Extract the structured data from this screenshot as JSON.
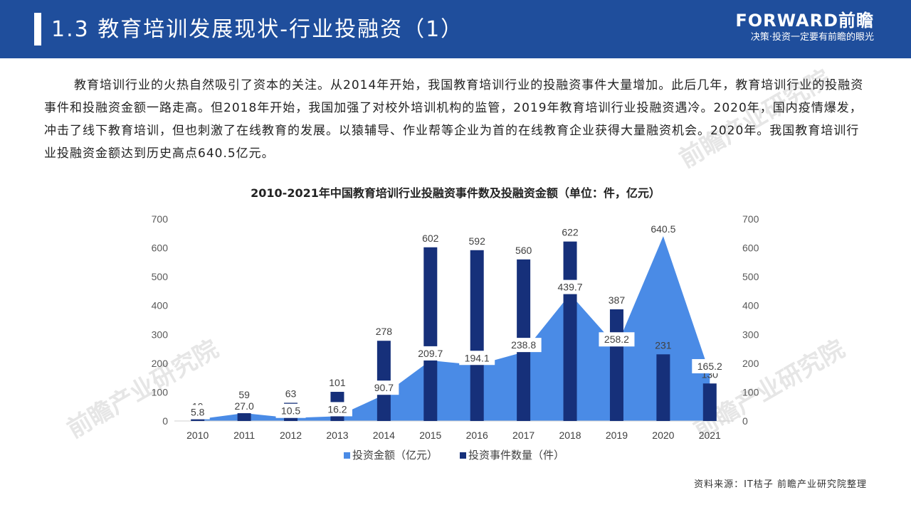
{
  "header": {
    "title": "1.3 教育培训发展现状-行业投融资（1）",
    "brand_name": "FORWARD前瞻",
    "brand_slogan": "决策·投资一定要有前瞻的眼光"
  },
  "intro": "教育培训行业的火热自然吸引了资本的关注。从2014年开始，我国教育培训行业的投融资事件大量增加。此后几年，教育培训行业的投融资事件和投融资金额一路走高。但2018年开始，我国加强了对校外培训机构的监管，2019年教育培训行业投融资遇冷。2020年，国内疫情爆发，冲击了线下教育培训，但也刺激了在线教育的发展。以猿辅导、作业帮等企业为首的在线教育企业获得大量融资机会。2020年。我国教育培训行业投融资金额达到历史高点640.5亿元。",
  "watermark": "前瞻产业研究院",
  "chart_data": {
    "type": "bar",
    "title": "2010-2021年中国教育培训行业投融资事件数及投融资金额（单位：件，亿元）",
    "categories": [
      "2010",
      "2011",
      "2012",
      "2013",
      "2014",
      "2015",
      "2016",
      "2017",
      "2018",
      "2019",
      "2020",
      "2021"
    ],
    "ylim": [
      0,
      700
    ],
    "y_ticks": [
      "0",
      "100",
      "200",
      "300",
      "400",
      "500",
      "600",
      "700"
    ],
    "grid": false,
    "legend_position": "bottom",
    "series": [
      {
        "name": "投资金额（亿元）",
        "type": "area",
        "color": "#4a8be6",
        "values": [
          5.8,
          27.0,
          10.5,
          16.2,
          90.7,
          209.7,
          194.1,
          238.8,
          439.7,
          258.2,
          640.5,
          165.2
        ],
        "labels": [
          "5.8",
          "27.0",
          "10.5",
          "16.2",
          "90.7",
          "209.7",
          "194.1",
          "238.8",
          "439.7",
          "258.2",
          "640.5",
          "165.2"
        ]
      },
      {
        "name": "投资事件数量（件）",
        "type": "bar",
        "color": "#16307a",
        "values": [
          19,
          59,
          63,
          101,
          278,
          602,
          592,
          560,
          622,
          387,
          231,
          130
        ],
        "labels": [
          "19",
          "59",
          "63",
          "101",
          "278",
          "602",
          "592",
          "560",
          "622",
          "387",
          "231",
          "130"
        ]
      }
    ]
  },
  "source": "资料来源：IT桔子 前瞻产业研究院整理"
}
